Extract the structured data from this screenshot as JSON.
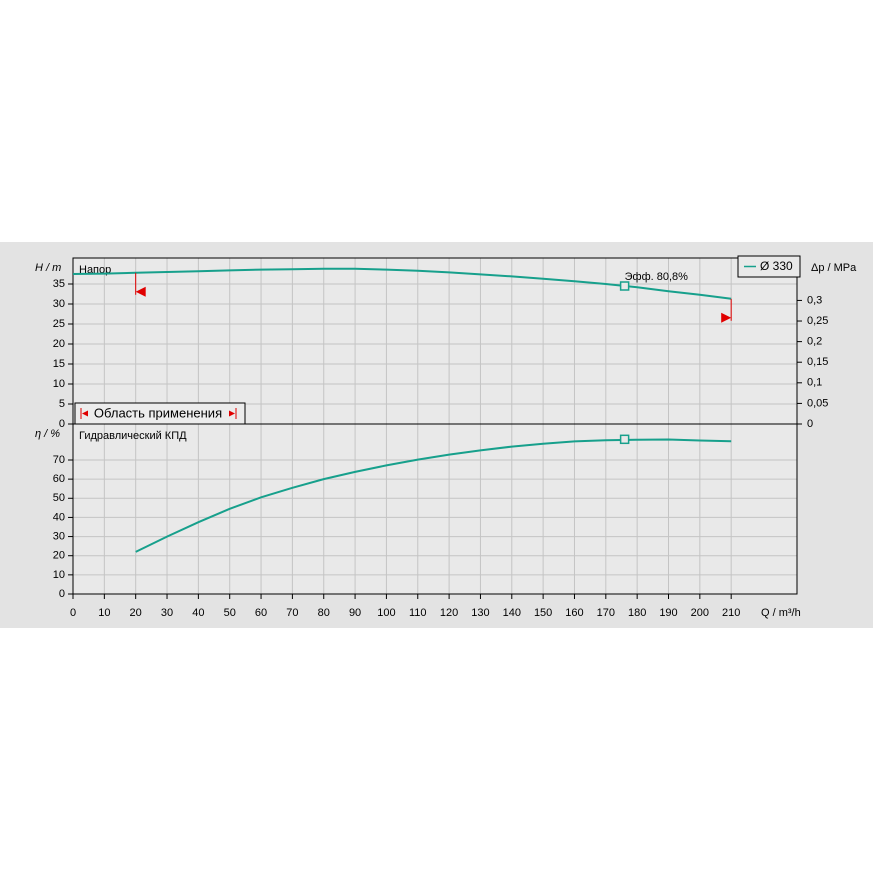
{
  "chart_data": [
    {
      "type": "line",
      "title": "Напор",
      "y_label": "H / m",
      "y2_label": "Δp / MPa",
      "xlim": [
        0,
        231
      ],
      "xticks": [
        0,
        10,
        20,
        30,
        40,
        50,
        60,
        70,
        80,
        90,
        100,
        110,
        120,
        130,
        140,
        150,
        160,
        170,
        180,
        190,
        200,
        210
      ],
      "ylim": [
        0,
        41.5
      ],
      "yticks": [
        0,
        5,
        10,
        15,
        20,
        25,
        30,
        35
      ],
      "y2lim": [
        0,
        0.403
      ],
      "y2ticks": [
        0,
        {
          "value": 0.05,
          "label": "0,05"
        },
        {
          "value": 0.1,
          "label": "0,1"
        },
        {
          "value": 0.15,
          "label": "0,15"
        },
        {
          "value": 0.2,
          "label": "0,2"
        },
        {
          "value": 0.25,
          "label": "0,25"
        },
        {
          "value": 0.3,
          "label": "0,3"
        }
      ],
      "grid": true,
      "x": [
        0,
        10,
        20,
        30,
        40,
        50,
        60,
        70,
        80,
        90,
        100,
        110,
        120,
        130,
        140,
        150,
        160,
        170,
        180,
        190,
        200,
        210
      ],
      "series": [
        {
          "name": "Ø 330",
          "color": "#17a08c",
          "values": [
            37.5,
            37.6,
            37.8,
            38.0,
            38.2,
            38.4,
            38.6,
            38.7,
            38.8,
            38.8,
            38.6,
            38.3,
            37.9,
            37.4,
            36.9,
            36.3,
            35.7,
            35.0,
            34.2,
            33.2,
            32.3,
            31.3
          ]
        }
      ],
      "operating_point": {
        "x": 176,
        "y": 34.5,
        "label": "Эфф.  80,8%"
      },
      "range_label": "Область применения",
      "range": [
        20,
        210
      ],
      "range_color": "#e00000"
    },
    {
      "type": "line",
      "title": "Гидравлический КПД",
      "y_label": "η / %",
      "x_label": "Q / m³/h",
      "xlim": [
        0,
        231
      ],
      "xticks": [
        0,
        10,
        20,
        30,
        40,
        50,
        60,
        70,
        80,
        90,
        100,
        110,
        120,
        130,
        140,
        150,
        160,
        170,
        180,
        190,
        200,
        210
      ],
      "ylim": [
        0,
        88.8
      ],
      "yticks": [
        0,
        10,
        20,
        30,
        40,
        50,
        60,
        70
      ],
      "grid": true,
      "x": [
        20,
        30,
        40,
        50,
        60,
        70,
        80,
        90,
        100,
        110,
        120,
        130,
        140,
        150,
        160,
        170,
        180,
        190,
        200,
        210
      ],
      "series": [
        {
          "name": "Ø 330",
          "color": "#17a08c",
          "values": [
            22,
            30,
            37.5,
            44.5,
            50.5,
            55.5,
            60,
            63.8,
            67.2,
            70.2,
            72.8,
            75,
            77,
            78.5,
            79.7,
            80.3,
            80.6,
            80.7,
            80.2,
            79.8
          ]
        }
      ],
      "operating_point": {
        "x": 176,
        "y": 80.8
      }
    }
  ]
}
